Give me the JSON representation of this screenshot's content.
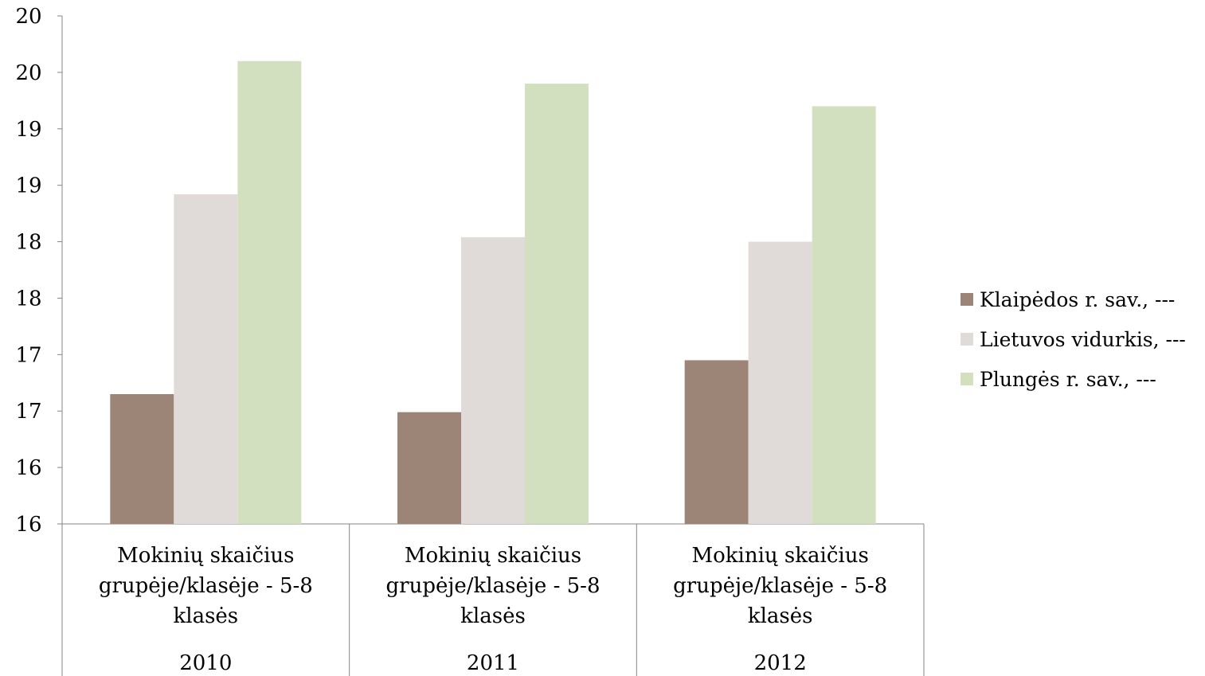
{
  "chart_data": {
    "type": "bar",
    "title": "",
    "xlabel": "",
    "ylabel": "",
    "ylim": [
      16,
      20.5
    ],
    "yticks": [
      16,
      16.5,
      17,
      17.5,
      18,
      18.5,
      19,
      19.5,
      20,
      20.5
    ],
    "ytick_labels": [
      "16",
      "16",
      "17",
      "17",
      "18",
      "18",
      "19",
      "19",
      "20",
      "20"
    ],
    "categories": [
      {
        "label_lines": [
          "Mokinių skaičius",
          "grupėje/klasėje - 5-8",
          "klasės"
        ],
        "year": "2010"
      },
      {
        "label_lines": [
          "Mokinių skaičius",
          "grupėje/klasėje - 5-8",
          "klasės"
        ],
        "year": "2011"
      },
      {
        "label_lines": [
          "Mokinių skaičius",
          "grupėje/klasėje - 5-8",
          "klasės"
        ],
        "year": "2012"
      }
    ],
    "series": [
      {
        "name": "Klaipėdos r. sav., ---",
        "color": "#9c8577",
        "values": [
          17.15,
          16.99,
          17.45
        ]
      },
      {
        "name": "Lietuvos vidurkis, ---",
        "color": "#e0dbd8",
        "values": [
          18.92,
          18.54,
          18.5
        ]
      },
      {
        "name": "Plungės r. sav., ---",
        "color": "#d3e0c0",
        "values": [
          20.1,
          19.9,
          19.7
        ]
      }
    ],
    "grid": false,
    "legend": "right"
  }
}
